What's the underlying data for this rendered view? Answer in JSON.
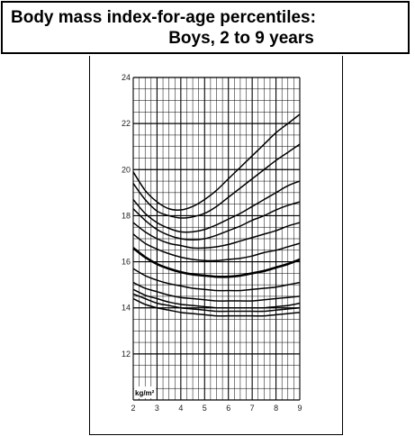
{
  "title": {
    "line1": "Body mass index-for-age percentiles:",
    "line2": "Boys, 2 to 9 years"
  },
  "chart_data": {
    "type": "line",
    "title": "Body mass index-for-age percentiles: Boys, 2 to 9 years",
    "ylabel": "kg/m²",
    "xlabel": "",
    "xlim": [
      2,
      9
    ],
    "ylim": [
      10,
      24
    ],
    "x_ticks": [
      2,
      3,
      4,
      5,
      6,
      7,
      8,
      9
    ],
    "y_ticks": [
      12,
      14,
      16,
      18,
      20,
      22,
      24
    ],
    "grid": true,
    "x": [
      2,
      2.5,
      3,
      3.5,
      4,
      4.5,
      5,
      5.5,
      6,
      6.5,
      7,
      7.5,
      8,
      8.5,
      9
    ],
    "series": [
      {
        "values": [
          19.9,
          19.1,
          18.6,
          18.3,
          18.25,
          18.4,
          18.7,
          19.1,
          19.6,
          20.1,
          20.6,
          21.1,
          21.6,
          22.0,
          22.4
        ],
        "emphasis": false
      },
      {
        "values": [
          19.4,
          18.7,
          18.2,
          18.0,
          17.9,
          17.95,
          18.1,
          18.4,
          18.8,
          19.2,
          19.6,
          20.0,
          20.4,
          20.75,
          21.1
        ],
        "emphasis": false
      },
      {
        "values": [
          18.7,
          18.1,
          17.7,
          17.45,
          17.3,
          17.3,
          17.4,
          17.6,
          17.85,
          18.1,
          18.4,
          18.7,
          19.0,
          19.3,
          19.5
        ],
        "emphasis": false
      },
      {
        "values": [
          18.3,
          17.8,
          17.4,
          17.15,
          17.0,
          16.95,
          17.0,
          17.15,
          17.35,
          17.55,
          17.8,
          18.0,
          18.25,
          18.45,
          18.6
        ],
        "emphasis": false
      },
      {
        "values": [
          17.7,
          17.3,
          17.0,
          16.8,
          16.7,
          16.6,
          16.6,
          16.65,
          16.75,
          16.9,
          17.05,
          17.2,
          17.35,
          17.55,
          17.7
        ],
        "emphasis": false
      },
      {
        "values": [
          17.2,
          16.8,
          16.55,
          16.35,
          16.2,
          16.1,
          16.05,
          16.05,
          16.1,
          16.15,
          16.25,
          16.4,
          16.5,
          16.65,
          16.8
        ],
        "emphasis": false
      },
      {
        "values": [
          16.6,
          16.2,
          15.9,
          15.7,
          15.55,
          15.45,
          15.4,
          15.35,
          15.35,
          15.4,
          15.5,
          15.6,
          15.75,
          15.9,
          16.1
        ],
        "emphasis": true
      },
      {
        "values": [
          15.7,
          15.4,
          15.2,
          15.05,
          14.95,
          14.85,
          14.8,
          14.75,
          14.75,
          14.75,
          14.8,
          14.85,
          14.9,
          15.0,
          15.1
        ],
        "emphasis": false
      },
      {
        "values": [
          15.1,
          14.85,
          14.7,
          14.55,
          14.45,
          14.4,
          14.35,
          14.3,
          14.3,
          14.3,
          14.3,
          14.35,
          14.4,
          14.45,
          14.5
        ],
        "emphasis": false
      },
      {
        "values": [
          14.8,
          14.55,
          14.4,
          14.25,
          14.15,
          14.1,
          14.05,
          14.0,
          14.0,
          14.0,
          14.0,
          14.0,
          14.05,
          14.1,
          14.2
        ],
        "emphasis": false
      },
      {
        "values": [
          14.6,
          14.4,
          14.2,
          14.1,
          14.0,
          13.95,
          13.9,
          13.85,
          13.85,
          13.85,
          13.85,
          13.85,
          13.9,
          13.95,
          14.0
        ],
        "emphasis": false
      },
      {
        "values": [
          14.4,
          14.15,
          14.0,
          13.9,
          13.8,
          13.75,
          13.7,
          13.65,
          13.65,
          13.65,
          13.65,
          13.65,
          13.7,
          13.75,
          13.8
        ],
        "emphasis": false
      }
    ]
  }
}
